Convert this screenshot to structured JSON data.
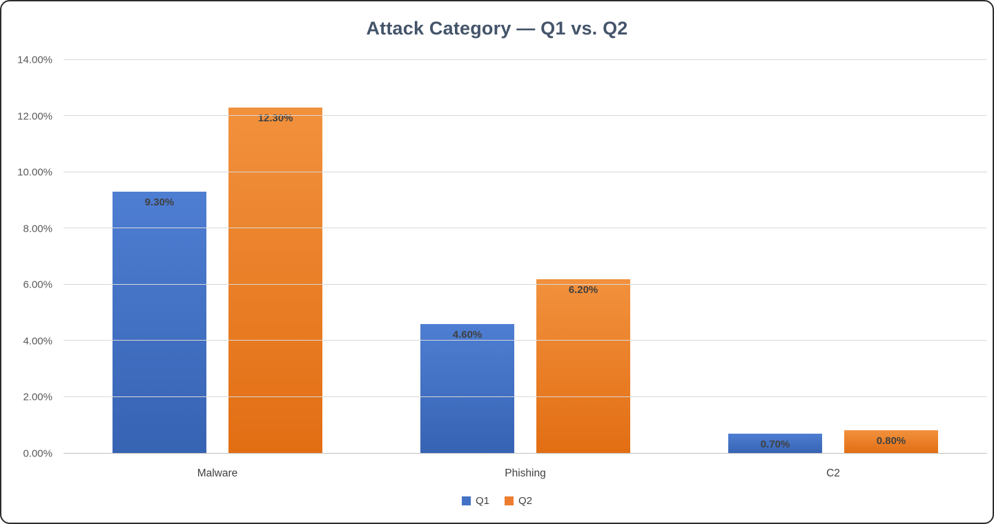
{
  "chart_data": {
    "type": "bar",
    "title": "Attack Category — Q1 vs. Q2",
    "categories": [
      "Malware",
      "Phishing",
      "C2"
    ],
    "series": [
      {
        "name": "Q1",
        "values": [
          9.3,
          4.6,
          0.7
        ],
        "labels": [
          "9.30%",
          "4.60%",
          "0.70%"
        ],
        "legend_color": "#4472C4",
        "gradient_top": "#4e7ed2",
        "gradient_bottom": "#3763b3"
      },
      {
        "name": "Q2",
        "values": [
          12.3,
          6.2,
          0.8
        ],
        "labels": [
          "12.30%",
          "6.20%",
          "0.80%"
        ],
        "legend_color": "#ED7D31",
        "gradient_top": "#f2913d",
        "gradient_bottom": "#e26e13"
      }
    ],
    "y_axis": {
      "min": 0,
      "max": 14,
      "step": 2,
      "tick_labels": [
        "0.00%",
        "2.00%",
        "4.00%",
        "6.00%",
        "8.00%",
        "10.00%",
        "12.00%",
        "14.00%"
      ]
    },
    "grid": true,
    "legend_position": "bottom",
    "colors": {
      "title": "#44546A",
      "gridline": "#d9d9d9",
      "axis_line": "#bfbfbf",
      "tick_text": "#595959",
      "label_text": "#404040"
    }
  }
}
